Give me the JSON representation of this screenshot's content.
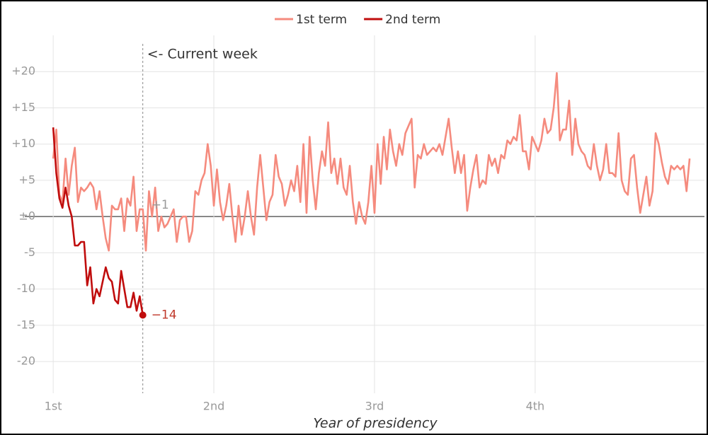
{
  "chart_data": {
    "type": "line",
    "xlabel": "Year of presidency",
    "xlim": [
      -9.2,
      210.8
    ],
    "ylim": [
      -23.8,
      25
    ],
    "xticks": [
      {
        "value": 0,
        "label": "1st"
      },
      {
        "value": 52,
        "label": "2nd"
      },
      {
        "value": 104,
        "label": "3rd"
      },
      {
        "value": 156,
        "label": "4th"
      }
    ],
    "yticks": [
      {
        "value": 20,
        "label": "+20"
      },
      {
        "value": 15,
        "label": "+15"
      },
      {
        "value": 10,
        "label": "+10"
      },
      {
        "value": 5,
        "label": "+5"
      },
      {
        "value": 0,
        "label": "±0"
      },
      -5,
      -10,
      -15,
      -20
    ],
    "grid": true,
    "legend": "top",
    "current_week": {
      "x": 29,
      "label": "<- Current week"
    },
    "annotations": [
      {
        "x": 29,
        "y": 1,
        "text": "+1",
        "color": "#9a9a9a"
      },
      {
        "x": 29,
        "y": -13.6,
        "text": "−14",
        "color": "#c0392b"
      }
    ],
    "series": [
      {
        "name": "1st term",
        "color": "#f58b7e",
        "x": [
          0,
          1,
          2,
          3,
          4,
          5,
          6,
          7,
          8,
          9,
          10,
          11,
          12,
          13,
          14,
          15,
          16,
          17,
          18,
          19,
          20,
          21,
          22,
          23,
          24,
          25,
          26,
          27,
          28,
          29,
          30,
          31,
          32,
          33,
          34,
          35,
          36,
          37,
          38,
          39,
          40,
          41,
          42,
          43,
          44,
          45,
          46,
          47,
          48,
          49,
          50,
          51,
          52,
          53,
          54,
          55,
          56,
          57,
          58,
          59,
          60,
          61,
          62,
          63,
          64,
          65,
          66,
          67,
          68,
          69,
          70,
          71,
          72,
          73,
          74,
          75,
          76,
          77,
          78,
          79,
          80,
          81,
          82,
          83,
          84,
          85,
          86,
          87,
          88,
          89,
          90,
          91,
          92,
          93,
          94,
          95,
          96,
          97,
          98,
          99,
          100,
          101,
          102,
          103,
          104,
          105,
          106,
          107,
          108,
          109,
          110,
          111,
          112,
          113,
          114,
          115,
          116,
          117,
          118,
          119,
          120,
          121,
          122,
          123,
          124,
          125,
          126,
          127,
          128,
          129,
          130,
          131,
          132,
          133,
          134,
          135,
          136,
          137,
          138,
          139,
          140,
          141,
          142,
          143,
          144,
          145,
          146,
          147,
          148,
          149,
          150,
          151,
          152,
          153,
          154,
          155,
          156,
          157,
          158,
          159,
          160,
          161,
          162,
          163,
          164,
          165,
          166,
          167,
          168,
          169,
          170,
          171,
          172,
          173,
          174,
          175,
          176,
          177,
          178,
          179,
          180,
          181,
          182,
          183,
          184,
          185,
          186,
          187,
          188,
          189,
          190,
          191,
          192,
          193,
          194,
          195,
          196,
          197,
          198,
          199,
          200,
          201,
          202,
          203,
          204,
          205,
          206
        ],
        "values": [
          8,
          12,
          3,
          2,
          8,
          3,
          7,
          9.5,
          2,
          4,
          3.5,
          4,
          4.7,
          4,
          1,
          3.5,
          0,
          -3,
          -4.7,
          1.5,
          1,
          1,
          2.5,
          -2,
          2.5,
          1.5,
          5.5,
          -2,
          1,
          1,
          -4.7,
          3.5,
          0,
          4,
          -2,
          0,
          -1.5,
          -1,
          0,
          1,
          -3.5,
          -0.5,
          0,
          0,
          -3.5,
          -2,
          3.5,
          3,
          5,
          6,
          10,
          7,
          1.5,
          6.5,
          2,
          -0.5,
          1.5,
          4.5,
          0,
          -3.5,
          1.5,
          -2.5,
          0,
          3.5,
          0,
          -2.5,
          4,
          8.5,
          4,
          -0.5,
          2,
          3,
          8.5,
          5.5,
          4.5,
          1.5,
          3,
          5,
          3.5,
          7,
          2,
          10,
          0.5,
          11,
          5,
          1,
          6,
          9,
          7,
          13,
          6,
          8,
          4.5,
          8,
          4,
          3,
          7,
          2,
          -1,
          2,
          0,
          -1,
          2,
          7,
          0.5,
          10,
          4.5,
          11,
          6.5,
          12,
          9,
          7,
          10,
          8.5,
          11.5,
          12.5,
          13.5,
          4,
          8.5,
          8,
          10,
          8.5,
          9,
          9.5,
          9,
          10,
          8.5,
          11,
          13.5,
          9.5,
          6,
          9,
          6,
          8.5,
          0.8,
          4,
          6.5,
          8.5,
          4,
          5,
          4.5,
          8.5,
          7,
          8,
          6,
          8.5,
          8,
          10.5,
          10,
          11,
          10.5,
          14,
          9,
          9,
          6.5,
          11,
          10,
          9,
          10.5,
          13.5,
          11.5,
          12,
          15,
          19.8,
          10.5,
          12,
          12,
          16,
          8.5,
          13.5,
          10,
          9,
          8.5,
          7,
          6.5,
          10,
          7,
          5,
          6.5,
          10,
          6,
          6,
          5.5,
          11.5,
          5,
          3.5,
          3,
          8,
          8.5,
          4,
          0.5,
          3,
          5.5,
          1.5,
          3.5,
          11.5,
          10,
          7.5,
          5.5,
          4.5,
          7,
          6.5,
          7,
          6.5,
          7,
          3.5,
          8
        ]
      },
      {
        "name": "2nd term",
        "color": "#c00d0d",
        "x": [
          0,
          1,
          2,
          3,
          4,
          5,
          6,
          7,
          8,
          9,
          10,
          11,
          12,
          13,
          14,
          15,
          16,
          17,
          18,
          19,
          20,
          21,
          22,
          23,
          24,
          25,
          26,
          27,
          28,
          29
        ],
        "values": [
          12.3,
          6,
          2.5,
          1.2,
          4,
          1.5,
          0,
          -4,
          -4,
          -3.5,
          -3.5,
          -9.5,
          -7,
          -12,
          -10,
          -11,
          -9,
          -7,
          -8.5,
          -9,
          -11.5,
          -12,
          -7.5,
          -10,
          -12.5,
          -12.5,
          -10.5,
          -13,
          -11,
          -13.6
        ]
      }
    ]
  }
}
